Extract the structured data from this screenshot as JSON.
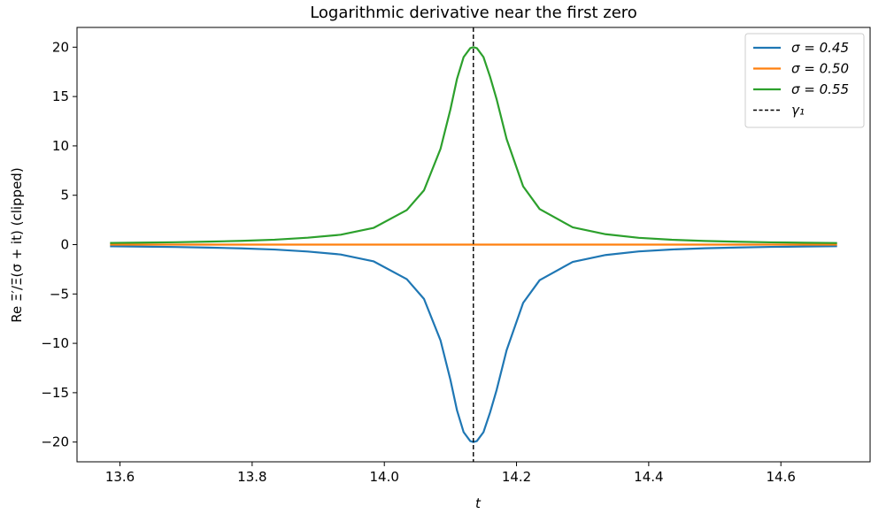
{
  "chart_data": {
    "type": "line",
    "title": "Logarithmic derivative near the first zero",
    "xlabel": "t",
    "ylabel": "Re Ξ′/Ξ(σ + it) (clipped)",
    "xlim": [
      13.535,
      14.735
    ],
    "ylim": [
      -22,
      22
    ],
    "xticks": [
      13.6,
      13.8,
      14.0,
      14.2,
      14.4,
      14.6
    ],
    "xtick_labels": [
      "13.6",
      "13.8",
      "14.0",
      "14.2",
      "14.4",
      "14.6"
    ],
    "yticks": [
      20,
      15,
      10,
      5,
      0,
      -5,
      -10,
      -15,
      -20
    ],
    "ytick_labels": [
      "20",
      "15",
      "10",
      "5",
      "0",
      "−5",
      "−10",
      "−15",
      "−20"
    ],
    "grid": false,
    "legend_position": "top-right",
    "vline": {
      "x": 14.1347,
      "label": "γ₁",
      "color": "#000000",
      "style": "dashed"
    },
    "series": [
      {
        "name": "σ = 0.45",
        "color": "#1f77b4",
        "x": [
          13.585,
          13.634,
          13.684,
          13.734,
          13.784,
          13.834,
          13.884,
          13.934,
          13.984,
          14.034,
          14.06,
          14.085,
          14.1,
          14.11,
          14.12,
          14.13,
          14.1347,
          14.14,
          14.15,
          14.16,
          14.17,
          14.185,
          14.21,
          14.235,
          14.285,
          14.335,
          14.385,
          14.435,
          14.485,
          14.535,
          14.585,
          14.635,
          14.685
        ],
        "values": [
          -0.17,
          -0.2,
          -0.24,
          -0.3,
          -0.38,
          -0.5,
          -0.7,
          -1.0,
          -1.7,
          -3.5,
          -5.5,
          -9.7,
          -13.7,
          -16.8,
          -19.0,
          -19.9,
          -20.0,
          -19.9,
          -19.0,
          -17.0,
          -14.7,
          -10.7,
          -5.9,
          -3.6,
          -1.75,
          -1.05,
          -0.69,
          -0.49,
          -0.37,
          -0.29,
          -0.23,
          -0.19,
          -0.16
        ]
      },
      {
        "name": "σ = 0.50",
        "color": "#ff7f0e",
        "x": [
          13.585,
          14.685
        ],
        "values": [
          0,
          0
        ]
      },
      {
        "name": "σ = 0.55",
        "color": "#2ca02c",
        "x": [
          13.585,
          13.634,
          13.684,
          13.734,
          13.784,
          13.834,
          13.884,
          13.934,
          13.984,
          14.034,
          14.06,
          14.085,
          14.1,
          14.11,
          14.12,
          14.13,
          14.1347,
          14.14,
          14.15,
          14.16,
          14.17,
          14.185,
          14.21,
          14.235,
          14.285,
          14.335,
          14.385,
          14.435,
          14.485,
          14.535,
          14.585,
          14.635,
          14.685
        ],
        "values": [
          0.17,
          0.2,
          0.24,
          0.3,
          0.38,
          0.5,
          0.7,
          1.0,
          1.7,
          3.5,
          5.5,
          9.7,
          13.7,
          16.8,
          19.0,
          19.9,
          20.0,
          19.9,
          19.0,
          17.0,
          14.7,
          10.7,
          5.9,
          3.6,
          1.75,
          1.05,
          0.69,
          0.49,
          0.37,
          0.29,
          0.23,
          0.19,
          0.16
        ]
      }
    ]
  }
}
